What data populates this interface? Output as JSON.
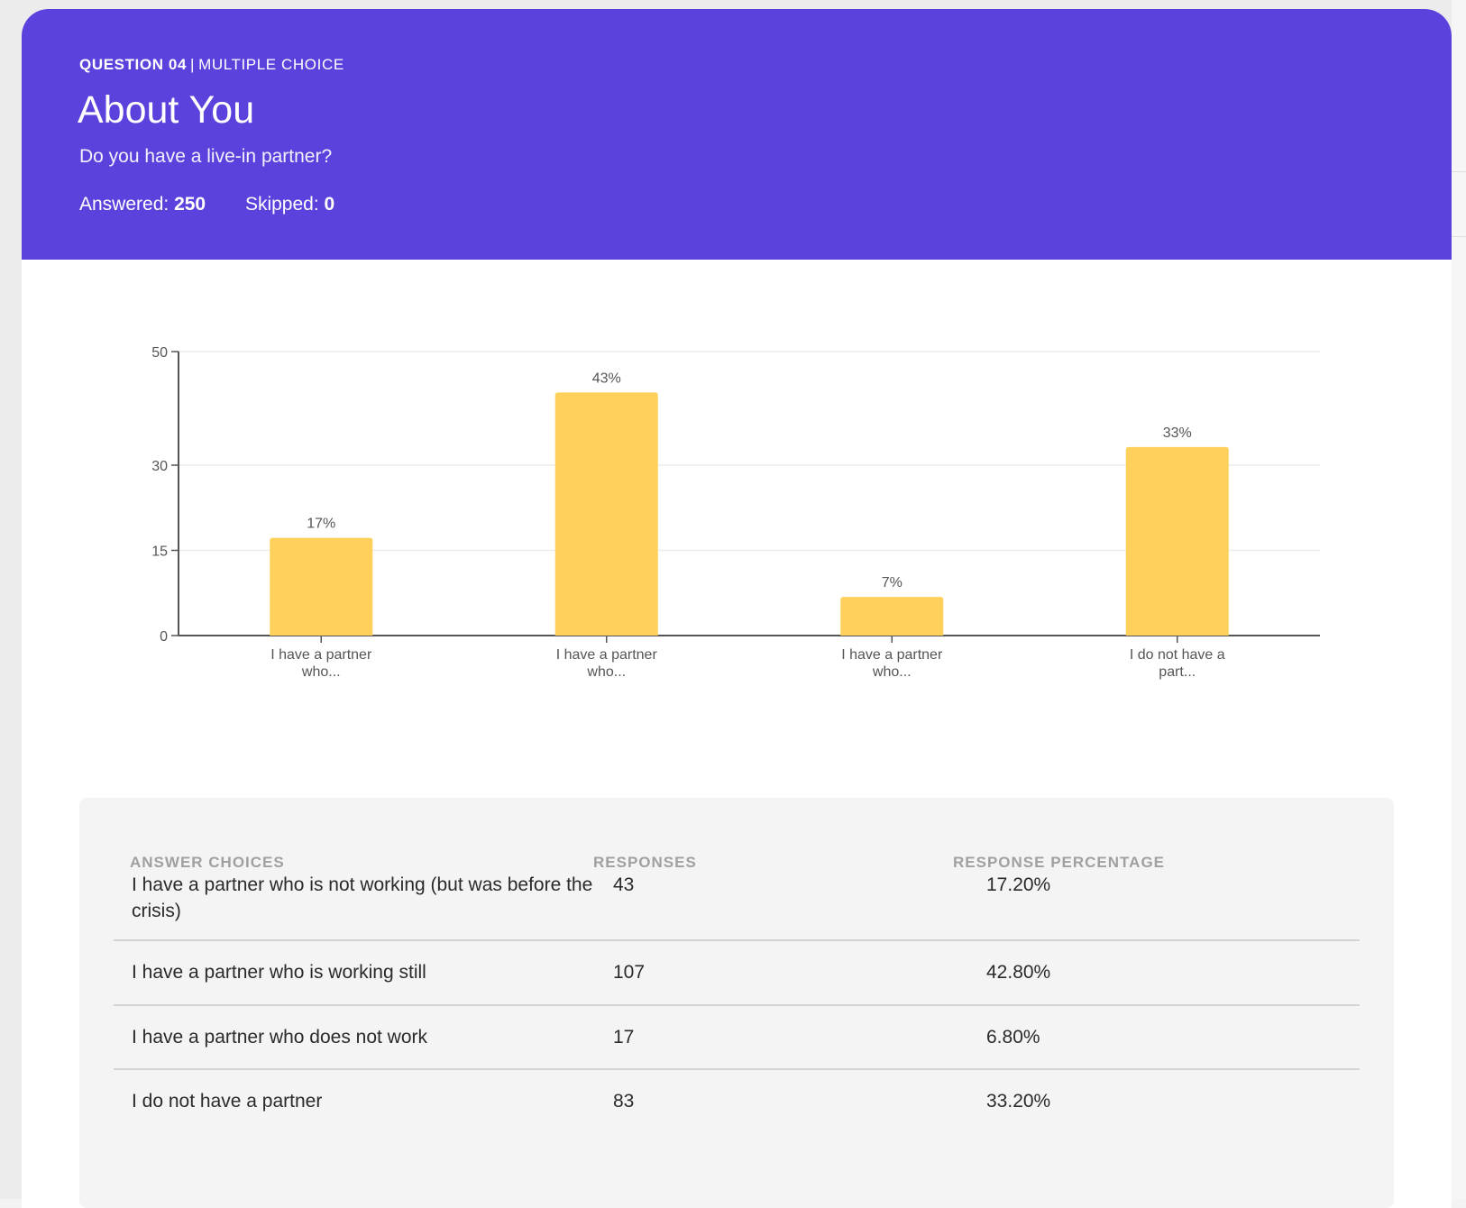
{
  "question": {
    "number_label": "QUESTION 04",
    "type_label": "MULTIPLE CHOICE",
    "separator": "|",
    "title": "About You",
    "subtitle": "Do you have a live-in partner?",
    "answered_label": "Answered:",
    "answered_value": "250",
    "skipped_label": "Skipped:",
    "skipped_value": "0"
  },
  "colors": {
    "header_bg": "#5b42dc",
    "bar": "#ffd05c"
  },
  "chart_data": {
    "type": "bar",
    "categories": [
      "I have a partner who...",
      "I have a partner who...",
      "I have a partner who...",
      "I do not have a part..."
    ],
    "values": [
      17.2,
      42.8,
      6.8,
      33.2
    ],
    "data_labels": [
      "17%",
      "43%",
      "7%",
      "33%"
    ],
    "y_ticks": [
      0,
      15,
      30,
      50
    ],
    "ylim": [
      0,
      50
    ],
    "grid": true,
    "title": "",
    "xlabel": "",
    "ylabel": ""
  },
  "table": {
    "headers": [
      "ANSWER CHOICES",
      "RESPONSES",
      "RESPONSE PERCENTAGE"
    ],
    "rows": [
      {
        "choice": "I have a partner who is not working (but was before the crisis)",
        "responses": "43",
        "percentage": "17.20%"
      },
      {
        "choice": "I have a partner who is working still",
        "responses": "107",
        "percentage": "42.80%"
      },
      {
        "choice": "I have a partner who does not work",
        "responses": "17",
        "percentage": "6.80%"
      },
      {
        "choice": "I do not have a partner",
        "responses": "83",
        "percentage": "33.20%"
      }
    ]
  }
}
